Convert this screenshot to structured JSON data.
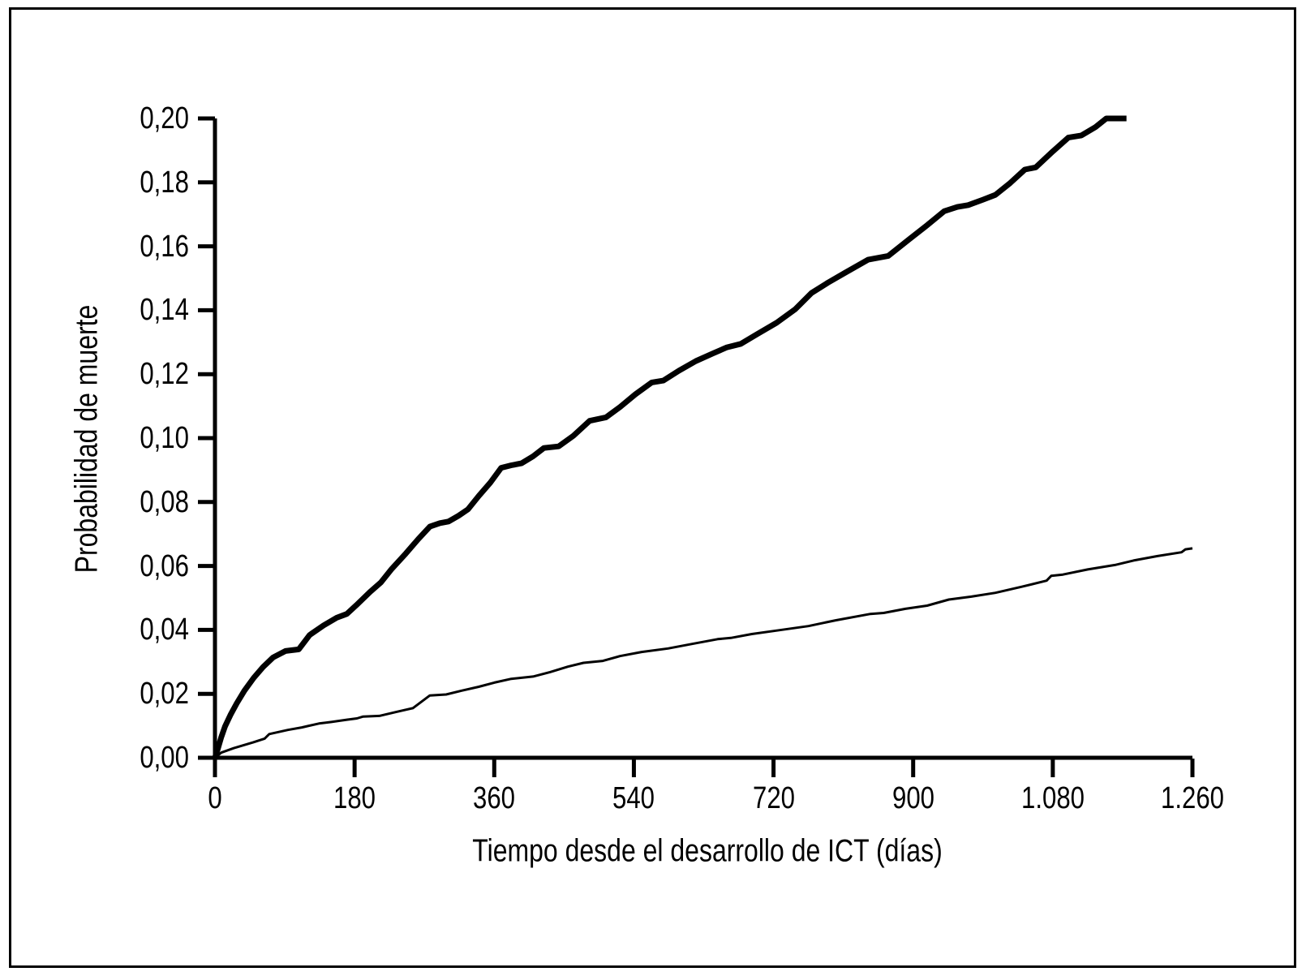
{
  "figure": {
    "background_color": "#ffffff",
    "frame_color": "#000000",
    "axis_color": "#000000",
    "line_color": "#000000"
  },
  "chart_data": {
    "type": "line",
    "title": "",
    "xlabel": "Tiempo desde el desarrollo de ICT (días)",
    "ylabel": "Probabilidad de muerte",
    "xlim": [
      0,
      1260
    ],
    "ylim": [
      0.0,
      0.2
    ],
    "grid": false,
    "legend_position": "none",
    "x_ticks": {
      "values": [
        0,
        180,
        360,
        540,
        720,
        900,
        1080,
        1260
      ],
      "labels": [
        "0",
        "180",
        "360",
        "540",
        "720",
        "900",
        "1.080",
        "1.260"
      ]
    },
    "y_ticks": {
      "values": [
        0.0,
        0.02,
        0.04,
        0.06,
        0.08,
        0.1,
        0.12,
        0.14,
        0.16,
        0.18,
        0.2
      ],
      "labels": [
        "0,00",
        "0,02",
        "0,04",
        "0,06",
        "0,08",
        "0,10",
        "0,12",
        "0,14",
        "0,16",
        "0,18",
        "0,20"
      ]
    },
    "series": [
      {
        "name": "curva superior (línea gruesa)",
        "style": "thick",
        "points": [
          [
            0,
            0
          ],
          [
            4,
            0.003
          ],
          [
            8,
            0.0064
          ],
          [
            13,
            0.0098
          ],
          [
            20,
            0.0134
          ],
          [
            28,
            0.017
          ],
          [
            38,
            0.021
          ],
          [
            50,
            0.025
          ],
          [
            62,
            0.0284
          ],
          [
            75,
            0.0314
          ],
          [
            91,
            0.0334
          ],
          [
            108,
            0.0339
          ],
          [
            122,
            0.0384
          ],
          [
            140,
            0.0414
          ],
          [
            157,
            0.0438
          ],
          [
            170,
            0.045
          ],
          [
            182,
            0.0477
          ],
          [
            200,
            0.0519
          ],
          [
            214,
            0.0549
          ],
          [
            228,
            0.0591
          ],
          [
            246,
            0.0639
          ],
          [
            262,
            0.0684
          ],
          [
            277,
            0.0723
          ],
          [
            290,
            0.0734
          ],
          [
            301,
            0.0739
          ],
          [
            314,
            0.0757
          ],
          [
            326,
            0.0777
          ],
          [
            340,
            0.0819
          ],
          [
            355,
            0.0861
          ],
          [
            369,
            0.0907
          ],
          [
            382,
            0.0915
          ],
          [
            395,
            0.0921
          ],
          [
            410,
            0.0943
          ],
          [
            424,
            0.0969
          ],
          [
            443,
            0.0974
          ],
          [
            462,
            0.1007
          ],
          [
            483,
            0.1054
          ],
          [
            504,
            0.1065
          ],
          [
            522,
            0.1097
          ],
          [
            542,
            0.1137
          ],
          [
            563,
            0.1174
          ],
          [
            578,
            0.118
          ],
          [
            598,
            0.1211
          ],
          [
            620,
            0.1241
          ],
          [
            642,
            0.1265
          ],
          [
            660,
            0.1284
          ],
          [
            678,
            0.1295
          ],
          [
            700,
            0.1327
          ],
          [
            724,
            0.1361
          ],
          [
            748,
            0.1403
          ],
          [
            769,
            0.1454
          ],
          [
            790,
            0.1486
          ],
          [
            812,
            0.1517
          ],
          [
            842,
            0.1558
          ],
          [
            868,
            0.157
          ],
          [
            895,
            0.1622
          ],
          [
            918,
            0.1666
          ],
          [
            940,
            0.171
          ],
          [
            957,
            0.1723
          ],
          [
            971,
            0.1729
          ],
          [
            990,
            0.1746
          ],
          [
            1006,
            0.1761
          ],
          [
            1025,
            0.1798
          ],
          [
            1044,
            0.184
          ],
          [
            1058,
            0.1847
          ],
          [
            1080,
            0.1897
          ],
          [
            1100,
            0.194
          ],
          [
            1117,
            0.1947
          ],
          [
            1135,
            0.1973
          ],
          [
            1149,
            0.2
          ],
          [
            1175,
            0.2
          ]
        ]
      },
      {
        "name": "curva inferior (línea fina)",
        "style": "thin",
        "points": [
          [
            0,
            0
          ],
          [
            8,
            0.0016
          ],
          [
            24,
            0.003
          ],
          [
            49,
            0.0048
          ],
          [
            64,
            0.006
          ],
          [
            70,
            0.0074
          ],
          [
            94,
            0.0087
          ],
          [
            112,
            0.0095
          ],
          [
            134,
            0.0107
          ],
          [
            150,
            0.0112
          ],
          [
            170,
            0.0119
          ],
          [
            183,
            0.0123
          ],
          [
            191,
            0.0129
          ],
          [
            212,
            0.0131
          ],
          [
            233,
            0.0143
          ],
          [
            255,
            0.0155
          ],
          [
            277,
            0.0195
          ],
          [
            298,
            0.0198
          ],
          [
            318,
            0.021
          ],
          [
            340,
            0.0222
          ],
          [
            360,
            0.0235
          ],
          [
            382,
            0.0247
          ],
          [
            410,
            0.0254
          ],
          [
            432,
            0.0268
          ],
          [
            455,
            0.0285
          ],
          [
            475,
            0.0297
          ],
          [
            500,
            0.0303
          ],
          [
            522,
            0.0318
          ],
          [
            550,
            0.0331
          ],
          [
            584,
            0.0342
          ],
          [
            615,
            0.0356
          ],
          [
            648,
            0.0371
          ],
          [
            665,
            0.0375
          ],
          [
            692,
            0.0387
          ],
          [
            727,
            0.0399
          ],
          [
            765,
            0.0412
          ],
          [
            800,
            0.043
          ],
          [
            845,
            0.045
          ],
          [
            862,
            0.0453
          ],
          [
            890,
            0.0466
          ],
          [
            918,
            0.0476
          ],
          [
            946,
            0.0495
          ],
          [
            975,
            0.0504
          ],
          [
            1006,
            0.0516
          ],
          [
            1040,
            0.0535
          ],
          [
            1072,
            0.0554
          ],
          [
            1078,
            0.0569
          ],
          [
            1093,
            0.0573
          ],
          [
            1125,
            0.0589
          ],
          [
            1160,
            0.0603
          ],
          [
            1184,
            0.0617
          ],
          [
            1215,
            0.0631
          ],
          [
            1246,
            0.0643
          ],
          [
            1251,
            0.0652
          ],
          [
            1260,
            0.0655
          ]
        ]
      }
    ]
  }
}
